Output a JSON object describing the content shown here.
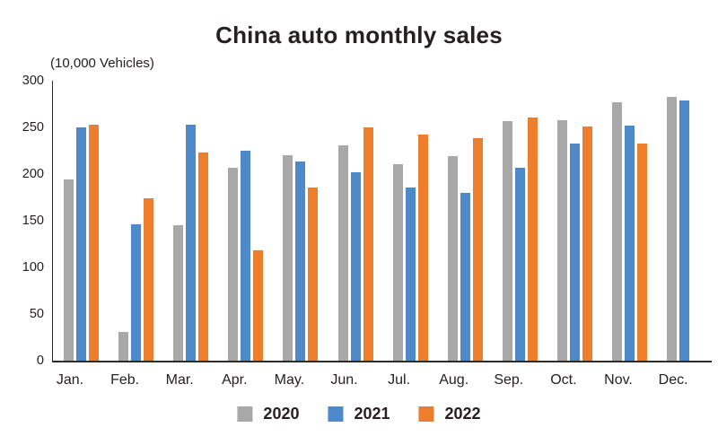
{
  "title": "China auto monthly sales",
  "unit_label": "(10,000 Vehicles)",
  "colors": {
    "series_2020": "#a8a8a8",
    "series_2021": "#4e89ca",
    "series_2022": "#ee7d2c",
    "axis": "#2e2b2b",
    "text": "#262021",
    "background": "#ffffff"
  },
  "chart_data": {
    "type": "bar",
    "title": "China auto monthly sales",
    "ylabel": "(10,000 Vehicles)",
    "xlabel": "",
    "ylim": [
      0,
      300
    ],
    "ytick_step": 50,
    "ytick_labels": [
      "0",
      "50",
      "100",
      "150",
      "200",
      "250",
      "300"
    ],
    "grid": false,
    "legend_position": "bottom",
    "categories": [
      "Jan.",
      "Feb.",
      "Mar.",
      "Apr.",
      "May.",
      "Jun.",
      "Jul.",
      "Aug.",
      "Sep.",
      "Oct.",
      "Nov.",
      "Dec."
    ],
    "series": [
      {
        "name": "2020",
        "color": "#a8a8a8",
        "values": [
          194,
          31,
          145,
          207,
          220,
          231,
          211,
          219,
          257,
          258,
          277,
          283
        ]
      },
      {
        "name": "2021",
        "color": "#4e89ca",
        "values": [
          250,
          146,
          253,
          225,
          213,
          202,
          186,
          180,
          207,
          233,
          252,
          279
        ]
      },
      {
        "name": "2022",
        "color": "#ee7d2c",
        "values": [
          253,
          174,
          223,
          118,
          186,
          250,
          242,
          238,
          261,
          251,
          233,
          null
        ]
      }
    ]
  }
}
